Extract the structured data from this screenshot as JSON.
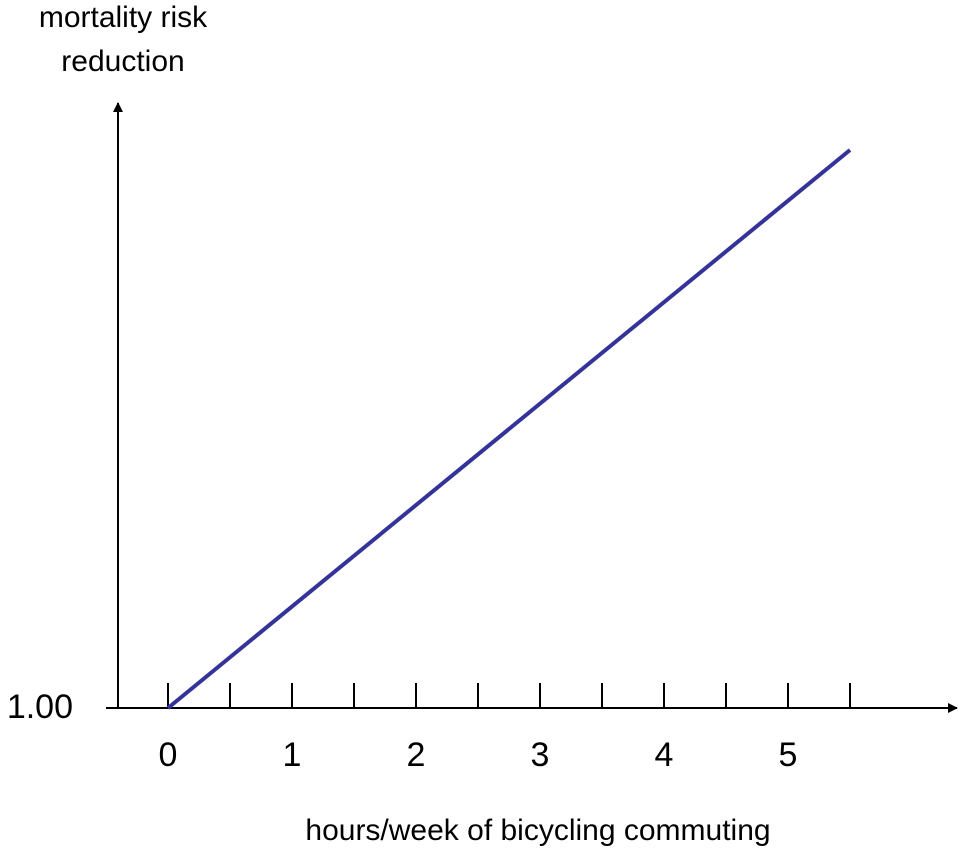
{
  "chart_data": {
    "type": "line",
    "title": "",
    "ylabel_lines": [
      "mortality risk",
      "reduction"
    ],
    "xlabel": "hours/week of bicycling commuting",
    "x_tick_labels": [
      "0",
      "1",
      "2",
      "3",
      "4",
      "5"
    ],
    "y_tick_labels": [
      "1.00"
    ],
    "y_baseline": 1.0,
    "x_tick_step": 0.5,
    "xlim": [
      0,
      5.5
    ],
    "grid": false,
    "legend": "none",
    "series": [
      {
        "x": [
          0,
          5.5
        ],
        "y": [
          1.0,
          1.88
        ],
        "color": "#333399"
      }
    ]
  }
}
